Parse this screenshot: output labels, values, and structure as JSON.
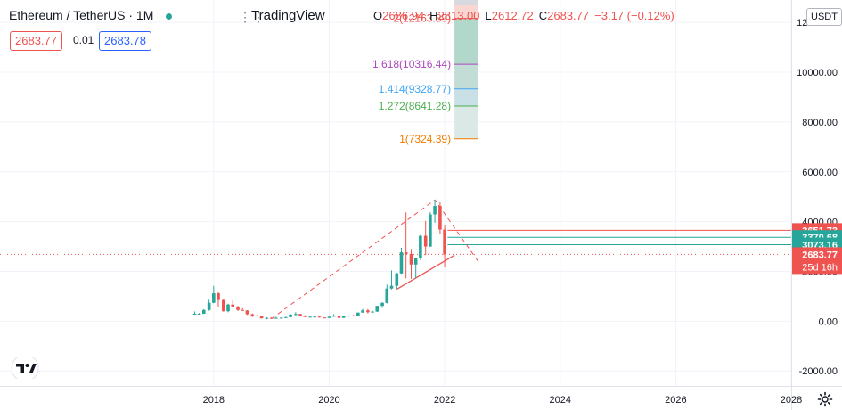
{
  "header": {
    "symbol": "Ethereum / TetherUS · 1M",
    "watermark": "TradingView",
    "ohlc": {
      "o_label": "O",
      "o": "2686.94",
      "h_label": "H",
      "h": "2813.00",
      "l_label": "L",
      "l": "2612.72",
      "c_label": "C",
      "c": "2683.77",
      "change": "−3.17 (−0.12%)"
    },
    "sell_price": "2683.77",
    "spread": "0.01",
    "buy_price": "2683.78",
    "menu_dots": "⋮⋮"
  },
  "currency_button": "USDT",
  "colors": {
    "up": "#26a69a",
    "down": "#ef5350",
    "accent": "#2962ff",
    "grid": "#f0f3fa"
  },
  "chart_data": {
    "type": "candlestick",
    "x_range": [
      2014.3,
      2028.0
    ],
    "y_range": [
      -2600,
      12900
    ],
    "x_ticks": [
      2018,
      2020,
      2022,
      2024,
      2026,
      2028
    ],
    "y_ticks": [
      {
        "value": -2000,
        "label": "-2000.00"
      },
      {
        "value": 0,
        "label": "0.00"
      },
      {
        "value": 2000,
        "label": "2000.00"
      },
      {
        "value": 4000,
        "label": "4000.00"
      },
      {
        "value": 6000,
        "label": "6000.00"
      },
      {
        "value": 8000,
        "label": "8000.00"
      },
      {
        "value": 10000,
        "label": "10000.00"
      },
      {
        "value": 12000,
        "label": "12000.00"
      }
    ],
    "candles": [
      {
        "t": 2017.67,
        "o": 300,
        "h": 390,
        "l": 260,
        "c": 300
      },
      {
        "t": 2017.75,
        "o": 300,
        "h": 330,
        "l": 270,
        "c": 300
      },
      {
        "t": 2017.83,
        "o": 300,
        "h": 480,
        "l": 290,
        "c": 450
      },
      {
        "t": 2017.92,
        "o": 450,
        "h": 860,
        "l": 420,
        "c": 740
      },
      {
        "t": 2018.0,
        "o": 740,
        "h": 1420,
        "l": 720,
        "c": 1120
      },
      {
        "t": 2018.08,
        "o": 1120,
        "h": 1160,
        "l": 570,
        "c": 850
      },
      {
        "t": 2018.17,
        "o": 850,
        "h": 880,
        "l": 380,
        "c": 400
      },
      {
        "t": 2018.25,
        "o": 400,
        "h": 700,
        "l": 360,
        "c": 670
      },
      {
        "t": 2018.33,
        "o": 670,
        "h": 840,
        "l": 560,
        "c": 580
      },
      {
        "t": 2018.42,
        "o": 580,
        "h": 620,
        "l": 410,
        "c": 450
      },
      {
        "t": 2018.5,
        "o": 450,
        "h": 520,
        "l": 420,
        "c": 430
      },
      {
        "t": 2018.58,
        "o": 430,
        "h": 440,
        "l": 250,
        "c": 280
      },
      {
        "t": 2018.67,
        "o": 280,
        "h": 310,
        "l": 170,
        "c": 230
      },
      {
        "t": 2018.75,
        "o": 230,
        "h": 240,
        "l": 190,
        "c": 200
      },
      {
        "t": 2018.83,
        "o": 200,
        "h": 210,
        "l": 110,
        "c": 115
      },
      {
        "t": 2018.92,
        "o": 115,
        "h": 150,
        "l": 82,
        "c": 133
      },
      {
        "t": 2019.0,
        "o": 133,
        "h": 160,
        "l": 100,
        "c": 106
      },
      {
        "t": 2019.08,
        "o": 106,
        "h": 170,
        "l": 100,
        "c": 136
      },
      {
        "t": 2019.17,
        "o": 136,
        "h": 150,
        "l": 125,
        "c": 141
      },
      {
        "t": 2019.25,
        "o": 141,
        "h": 185,
        "l": 140,
        "c": 162
      },
      {
        "t": 2019.33,
        "o": 162,
        "h": 290,
        "l": 160,
        "c": 268
      },
      {
        "t": 2019.42,
        "o": 268,
        "h": 362,
        "l": 230,
        "c": 290
      },
      {
        "t": 2019.5,
        "o": 290,
        "h": 300,
        "l": 190,
        "c": 218
      },
      {
        "t": 2019.58,
        "o": 218,
        "h": 240,
        "l": 160,
        "c": 172
      },
      {
        "t": 2019.67,
        "o": 172,
        "h": 225,
        "l": 155,
        "c": 180
      },
      {
        "t": 2019.75,
        "o": 180,
        "h": 200,
        "l": 155,
        "c": 183
      },
      {
        "t": 2019.83,
        "o": 183,
        "h": 195,
        "l": 140,
        "c": 152
      },
      {
        "t": 2019.92,
        "o": 152,
        "h": 155,
        "l": 117,
        "c": 129
      },
      {
        "t": 2020.0,
        "o": 129,
        "h": 188,
        "l": 127,
        "c": 180
      },
      {
        "t": 2020.08,
        "o": 180,
        "h": 287,
        "l": 178,
        "c": 218
      },
      {
        "t": 2020.17,
        "o": 218,
        "h": 235,
        "l": 86,
        "c": 133
      },
      {
        "t": 2020.25,
        "o": 133,
        "h": 225,
        "l": 130,
        "c": 206
      },
      {
        "t": 2020.33,
        "o": 206,
        "h": 227,
        "l": 180,
        "c": 231
      },
      {
        "t": 2020.42,
        "o": 231,
        "h": 255,
        "l": 215,
        "c": 225
      },
      {
        "t": 2020.5,
        "o": 225,
        "h": 350,
        "l": 220,
        "c": 345
      },
      {
        "t": 2020.58,
        "o": 345,
        "h": 490,
        "l": 340,
        "c": 434
      },
      {
        "t": 2020.67,
        "o": 434,
        "h": 488,
        "l": 308,
        "c": 360
      },
      {
        "t": 2020.75,
        "o": 360,
        "h": 420,
        "l": 335,
        "c": 386
      },
      {
        "t": 2020.83,
        "o": 386,
        "h": 620,
        "l": 370,
        "c": 616
      },
      {
        "t": 2020.92,
        "o": 616,
        "h": 760,
        "l": 535,
        "c": 737
      },
      {
        "t": 2021.0,
        "o": 737,
        "h": 1470,
        "l": 715,
        "c": 1312
      },
      {
        "t": 2021.08,
        "o": 1312,
        "h": 2040,
        "l": 1280,
        "c": 1420
      },
      {
        "t": 2021.17,
        "o": 1420,
        "h": 1945,
        "l": 1290,
        "c": 1918
      },
      {
        "t": 2021.25,
        "o": 1918,
        "h": 2950,
        "l": 1900,
        "c": 2770
      },
      {
        "t": 2021.33,
        "o": 2770,
        "h": 4370,
        "l": 1720,
        "c": 2700
      },
      {
        "t": 2021.42,
        "o": 2700,
        "h": 2900,
        "l": 1700,
        "c": 2275
      },
      {
        "t": 2021.5,
        "o": 2275,
        "h": 2550,
        "l": 1720,
        "c": 2530
      },
      {
        "t": 2021.58,
        "o": 2530,
        "h": 3460,
        "l": 2450,
        "c": 3430
      },
      {
        "t": 2021.67,
        "o": 3430,
        "h": 4030,
        "l": 2650,
        "c": 3000
      },
      {
        "t": 2021.75,
        "o": 3000,
        "h": 4380,
        "l": 2980,
        "c": 4290
      },
      {
        "t": 2021.83,
        "o": 4290,
        "h": 4870,
        "l": 3960,
        "c": 4630
      },
      {
        "t": 2021.92,
        "o": 4630,
        "h": 4780,
        "l": 3500,
        "c": 3680
      },
      {
        "t": 2022.0,
        "o": 3680,
        "h": 3860,
        "l": 2160,
        "c": 2680
      }
    ],
    "fib_extension": {
      "x_left": 2022.17,
      "x_right": 2022.58,
      "levels": [
        {
          "ratio": "1",
          "price": 7324.39,
          "label": "1(7324.39)",
          "color": "#f57c00",
          "fill": "#f3e5f5"
        },
        {
          "ratio": "1.272",
          "price": 8641.28,
          "label": "1.272(8641.28)",
          "color": "#4caf50",
          "fill": "#dbe9e6"
        },
        {
          "ratio": "1.414",
          "price": 9328.77,
          "label": "1.414(9328.77)",
          "color": "#42a5f5",
          "fill": "#c8e0e6"
        },
        {
          "ratio": "1.618",
          "price": 10316.44,
          "label": "1.618(10316.44)",
          "color": "#ab47bc",
          "fill": "#c2ddd6"
        },
        {
          "ratio": "2",
          "price": 12163.89,
          "label": "2(12163.89)",
          "color": "#ef5350",
          "fill": "#b2d8cb"
        }
      ],
      "cap_price": 12900,
      "cap_fill": "#f8d7d2"
    },
    "horizontal_lines": [
      {
        "price": 3651.73,
        "label": "3651.73",
        "color": "#ef5350"
      },
      {
        "price": 3370.68,
        "label": "3370.68",
        "color": "#26a69a"
      },
      {
        "price": 3073.16,
        "label": "3073.16",
        "color": "#26a69a"
      }
    ],
    "current_price": {
      "price": 2683.77,
      "label": "2683.77",
      "countdown": "25d 16h",
      "color": "#ef5350"
    },
    "trend_lines": [
      {
        "kind": "dashed",
        "color": "#ef5350",
        "points": [
          [
            2019.0,
            100
          ],
          [
            2021.83,
            4870
          ],
          [
            2022.58,
            2400
          ]
        ]
      },
      {
        "kind": "solid",
        "color": "#ef5350",
        "points": [
          [
            2021.17,
            1280
          ],
          [
            2022.17,
            2650
          ]
        ]
      }
    ]
  }
}
